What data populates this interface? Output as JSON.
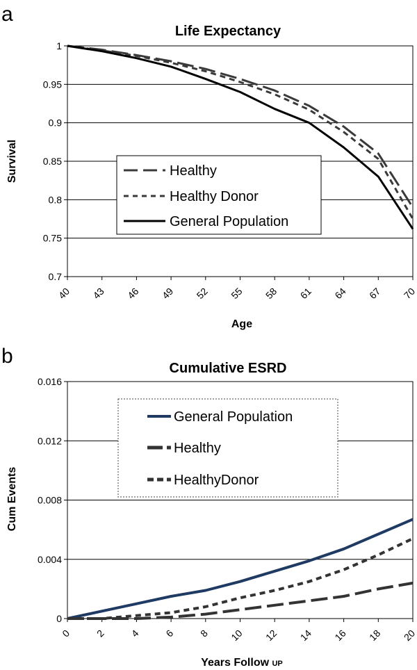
{
  "chart_data": [
    {
      "panel": "a",
      "type": "line",
      "title": "Life Expectancy",
      "xlabel": "Age",
      "ylabel": "Survival",
      "ylim": [
        0.7,
        1.0
      ],
      "xlim": [
        40,
        70
      ],
      "grid": true,
      "x_ticks": [
        40,
        43,
        46,
        49,
        52,
        55,
        58,
        61,
        64,
        67,
        70
      ],
      "y_ticks": [
        "0.7",
        "0.75",
        "0.8",
        "0.85",
        "0.9",
        "0.95",
        "1"
      ],
      "legend": [
        "Healthy",
        "Healthy Donor",
        "General Population"
      ],
      "series": [
        {
          "name": "Healthy",
          "style": "longdash",
          "x": [
            40,
            43,
            46,
            49,
            52,
            55,
            58,
            61,
            64,
            67,
            70
          ],
          "y": [
            1.0,
            0.995,
            0.988,
            0.98,
            0.97,
            0.957,
            0.942,
            0.922,
            0.895,
            0.86,
            0.79
          ]
        },
        {
          "name": "Healthy Donor",
          "style": "shortdash",
          "x": [
            40,
            43,
            46,
            49,
            52,
            55,
            58,
            61,
            64,
            67,
            70
          ],
          "y": [
            1.0,
            0.994,
            0.987,
            0.978,
            0.967,
            0.953,
            0.937,
            0.917,
            0.888,
            0.853,
            0.775
          ]
        },
        {
          "name": "General Population",
          "style": "solid",
          "x": [
            40,
            43,
            46,
            49,
            52,
            55,
            58,
            61,
            64,
            67,
            70
          ],
          "y": [
            1.0,
            0.993,
            0.984,
            0.973,
            0.957,
            0.94,
            0.918,
            0.9,
            0.868,
            0.83,
            0.762
          ]
        }
      ]
    },
    {
      "panel": "b",
      "type": "line",
      "title": "Cumulative ESRD",
      "xlabel": "Years Follow UP",
      "xlabel_main": "Years Follow ",
      "xlabel_suffix": "UP",
      "ylabel": "Cum Events",
      "ylim": [
        0,
        0.016
      ],
      "xlim": [
        0,
        20
      ],
      "grid": true,
      "x_ticks": [
        0,
        2,
        4,
        6,
        8,
        10,
        12,
        14,
        16,
        18,
        20
      ],
      "y_ticks": [
        "0",
        "0.004",
        "0.008",
        "0.012",
        "0.016"
      ],
      "legend": [
        "General Population",
        "Healthy",
        "HealthyDonor"
      ],
      "series": [
        {
          "name": "General Population",
          "style": "solid",
          "color": "#1f3a63",
          "x": [
            0,
            2,
            4,
            6,
            8,
            10,
            12,
            14,
            16,
            18,
            20
          ],
          "y": [
            0,
            0.0005,
            0.001,
            0.0015,
            0.0019,
            0.0025,
            0.0032,
            0.0039,
            0.0047,
            0.0057,
            0.0067
          ]
        },
        {
          "name": "Healthy",
          "style": "longdash",
          "color": "#333333",
          "x": [
            0,
            2,
            4,
            6,
            8,
            10,
            12,
            14,
            16,
            18,
            20
          ],
          "y": [
            0,
            0,
            0,
            0.0001,
            0.0003,
            0.0006,
            0.0009,
            0.0012,
            0.0015,
            0.002,
            0.0024
          ]
        },
        {
          "name": "HealthyDonor",
          "style": "shortdash",
          "color": "#333333",
          "x": [
            0,
            2,
            4,
            6,
            8,
            10,
            12,
            14,
            16,
            18,
            20
          ],
          "y": [
            0,
            0,
            0.0002,
            0.0004,
            0.0008,
            0.0014,
            0.0019,
            0.0025,
            0.0033,
            0.0043,
            0.0054
          ]
        }
      ]
    }
  ]
}
